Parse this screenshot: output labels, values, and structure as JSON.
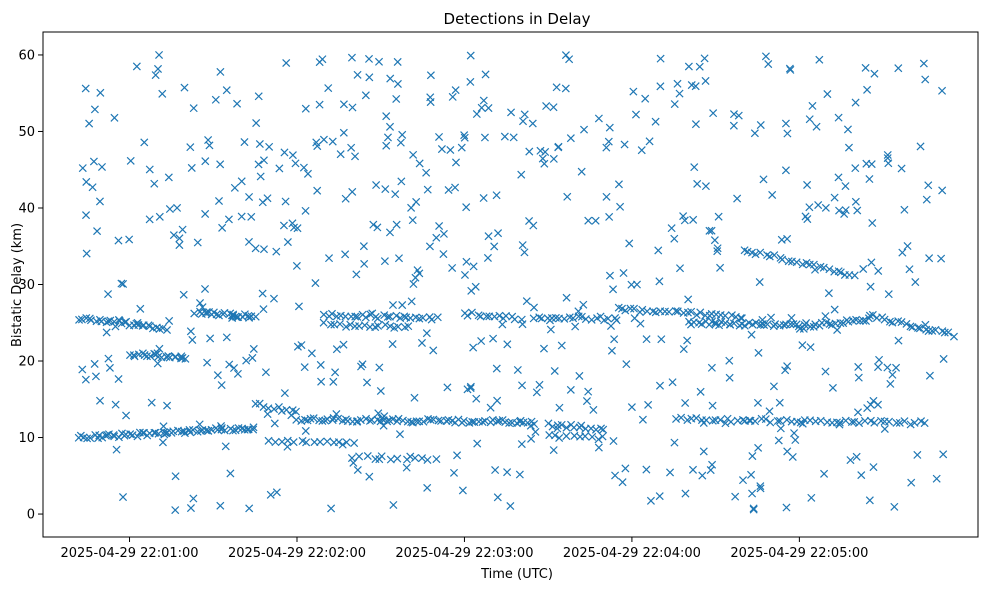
{
  "chart_data": {
    "type": "scatter",
    "title": "Detections in Delay",
    "xlabel": "Time (UTC)",
    "ylabel": "Bistatic Delay (km)",
    "marker": "x",
    "marker_color": "#1f77b4",
    "grid": false,
    "x_range_seconds": [
      -31,
      304
    ],
    "ylim": [
      -3,
      63
    ],
    "x_ticks": [
      {
        "t": 0,
        "label": "2025-04-29 22:01:00"
      },
      {
        "t": 60,
        "label": "2025-04-29 22:02:00"
      },
      {
        "t": 120,
        "label": "2025-04-29 22:03:00"
      },
      {
        "t": 180,
        "label": "2025-04-29 22:04:00"
      },
      {
        "t": 240,
        "label": "2025-04-29 22:05:00"
      }
    ],
    "y_ticks": [
      0,
      10,
      20,
      30,
      40,
      50,
      60
    ],
    "start_time": "2025-04-29 22:00:42",
    "end_time": "2025-04-29 22:05:45",
    "tracks": [
      {
        "t_start": -18,
        "t_end": 13,
        "y_start": 10.0,
        "y_end": 10.6,
        "count": 30
      },
      {
        "t_start": 13,
        "t_end": 45,
        "y_start": 10.6,
        "y_end": 11.3,
        "count": 32
      },
      {
        "t_start": -18,
        "t_end": -3,
        "y_start": 25.4,
        "y_end": 25.2,
        "count": 14
      },
      {
        "t_start": -3,
        "t_end": 13,
        "y_start": 25.0,
        "y_end": 24.3,
        "count": 16
      },
      {
        "t_start": 0,
        "t_end": 20,
        "y_start": 20.9,
        "y_end": 20.5,
        "count": 20
      },
      {
        "t_start": 25,
        "t_end": 45,
        "y_start": 26.3,
        "y_end": 25.8,
        "count": 22
      },
      {
        "t_start": 45,
        "t_end": 60,
        "y_start": 14.5,
        "y_end": 13.2,
        "count": 10
      },
      {
        "t_start": 60,
        "t_end": 145,
        "y_start": 12.4,
        "y_end": 12.0,
        "count": 70
      },
      {
        "t_start": 70,
        "t_end": 110,
        "y_start": 26.0,
        "y_end": 25.6,
        "count": 28
      },
      {
        "t_start": 70,
        "t_end": 100,
        "y_start": 24.8,
        "y_end": 24.4,
        "count": 18
      },
      {
        "t_start": 120,
        "t_end": 140,
        "y_start": 26.2,
        "y_end": 25.6,
        "count": 14
      },
      {
        "t_start": 145,
        "t_end": 175,
        "y_start": 25.8,
        "y_end": 25.5,
        "count": 20
      },
      {
        "t_start": 175,
        "t_end": 220,
        "y_start": 26.8,
        "y_end": 25.8,
        "count": 30
      },
      {
        "t_start": 200,
        "t_end": 240,
        "y_start": 25.0,
        "y_end": 24.7,
        "count": 34
      },
      {
        "t_start": 240,
        "t_end": 265,
        "y_start": 24.4,
        "y_end": 25.5,
        "count": 22
      },
      {
        "t_start": 220,
        "t_end": 260,
        "y_start": 34.6,
        "y_end": 31.2,
        "count": 26
      },
      {
        "t_start": 198,
        "t_end": 285,
        "y_start": 12.4,
        "y_end": 11.9,
        "count": 50
      },
      {
        "t_start": 265,
        "t_end": 295,
        "y_start": 26.0,
        "y_end": 23.4,
        "count": 22
      },
      {
        "t_start": 150,
        "t_end": 170,
        "y_start": 11.6,
        "y_end": 11.2,
        "count": 14
      },
      {
        "t_start": 150,
        "t_end": 170,
        "y_start": 10.2,
        "y_end": 9.9,
        "count": 10
      },
      {
        "t_start": 50,
        "t_end": 80,
        "y_start": 9.6,
        "y_end": 9.1,
        "count": 14
      },
      {
        "t_start": 80,
        "t_end": 110,
        "y_start": 7.5,
        "y_end": 7.1,
        "count": 12
      }
    ],
    "background_points": 620
  }
}
